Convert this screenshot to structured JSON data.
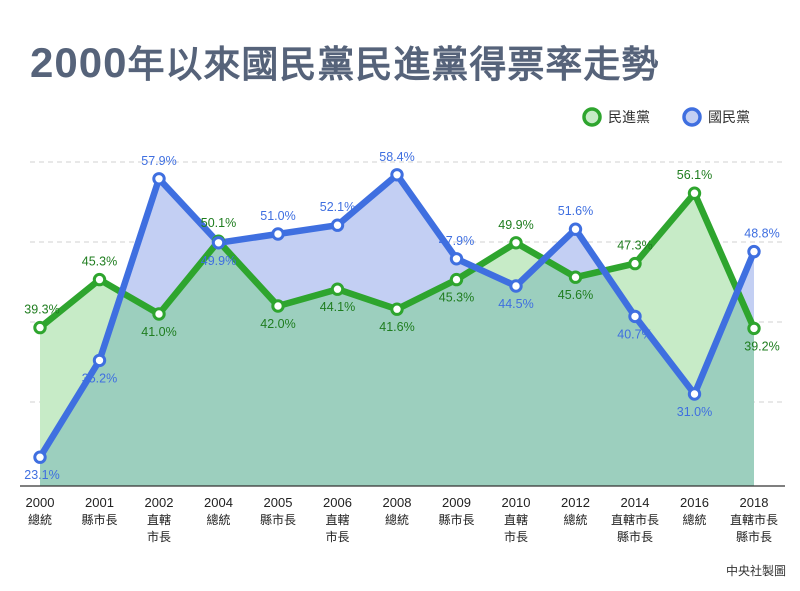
{
  "title": {
    "year": "2000",
    "text": "年以來國民黨民進黨得票率走勢"
  },
  "source": "中央社製圖",
  "chart_data": {
    "type": "line",
    "title": "2000年以來國民黨民進黨得票率走勢",
    "categories": [
      {
        "year": "2000",
        "kind": [
          "總統"
        ]
      },
      {
        "year": "2001",
        "kind": [
          "縣市長"
        ]
      },
      {
        "year": "2002",
        "kind": [
          "直轄",
          "市長"
        ]
      },
      {
        "year": "2004",
        "kind": [
          "總統"
        ]
      },
      {
        "year": "2005",
        "kind": [
          "縣市長"
        ]
      },
      {
        "year": "2006",
        "kind": [
          "直轄",
          "市長"
        ]
      },
      {
        "year": "2008",
        "kind": [
          "總統"
        ]
      },
      {
        "year": "2009",
        "kind": [
          "縣市長"
        ]
      },
      {
        "year": "2010",
        "kind": [
          "直轄",
          "市長"
        ]
      },
      {
        "year": "2012",
        "kind": [
          "總統"
        ]
      },
      {
        "year": "2014",
        "kind": [
          "直轄市長",
          "縣市長"
        ]
      },
      {
        "year": "2016",
        "kind": [
          "總統"
        ]
      },
      {
        "year": "2018",
        "kind": [
          "直轄市長",
          "縣市長"
        ]
      }
    ],
    "series": [
      {
        "name": "民進黨",
        "color": "#2ea52e",
        "fill": "#c7ebc7",
        "values": [
          39.3,
          45.3,
          41.0,
          50.1,
          42.0,
          44.1,
          41.6,
          45.3,
          49.9,
          45.6,
          47.3,
          56.1,
          39.2
        ],
        "labels": [
          "39.3%",
          "45.3%",
          "41.0%",
          "50.1%",
          "42.0%",
          "44.1%",
          "41.6%",
          "45.3%",
          "49.9%",
          "45.6%",
          "47.3%",
          "56.1%",
          "39.2%"
        ]
      },
      {
        "name": "國民黨",
        "color": "#3f6fe0",
        "fill": "#c3cff3",
        "values": [
          23.1,
          35.2,
          57.9,
          49.9,
          51.0,
          52.1,
          58.4,
          47.9,
          44.5,
          51.6,
          40.7,
          31.0,
          48.8
        ],
        "labels": [
          "23.1%",
          "35.2%",
          "57.9%",
          "49.9%",
          "51.0%",
          "52.1%",
          "58.4%",
          "47.9%",
          "44.5%",
          "51.6%",
          "40.7%",
          "31.0%",
          "48.8%"
        ]
      }
    ],
    "overlap_fill": "#9ccfbe",
    "ylim": [
      20,
      60
    ],
    "gridlines": [
      30,
      40,
      50,
      60
    ],
    "legend_position": "top-right"
  }
}
